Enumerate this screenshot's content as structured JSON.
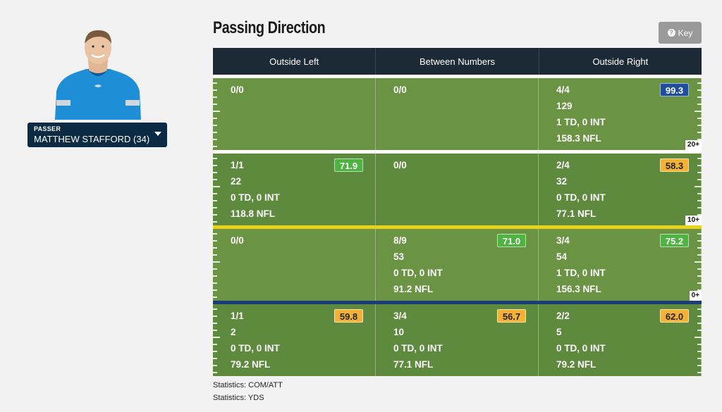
{
  "title": "Passing Direction",
  "key_button": {
    "label": "Key",
    "icon": "question-icon"
  },
  "passer": {
    "label": "Passer",
    "name": "MATTHEW STAFFORD (34)"
  },
  "columns": [
    "Outside Left",
    "Between Numbers",
    "Outside Right"
  ],
  "rows": [
    {
      "yard_label": "20+",
      "cells": [
        {
          "lines": [
            "0/0"
          ],
          "rating": null,
          "rating_color": null
        },
        {
          "lines": [
            "0/0"
          ],
          "rating": null,
          "rating_color": null
        },
        {
          "lines": [
            "4/4",
            "129",
            "1 TD, 0 INT",
            "158.3 NFL"
          ],
          "rating": "99.3",
          "rating_color": "blue"
        }
      ]
    },
    {
      "yard_label": "10+",
      "cells": [
        {
          "lines": [
            "1/1",
            "22",
            "0 TD, 0 INT",
            "118.8 NFL"
          ],
          "rating": "71.9",
          "rating_color": "green"
        },
        {
          "lines": [
            "0/0"
          ],
          "rating": null,
          "rating_color": null
        },
        {
          "lines": [
            "2/4",
            "32",
            "0 TD, 0 INT",
            "77.1 NFL"
          ],
          "rating": "58.3",
          "rating_color": "yellow"
        }
      ]
    },
    {
      "yard_label": "0+",
      "cells": [
        {
          "lines": [
            "0/0"
          ],
          "rating": null,
          "rating_color": null
        },
        {
          "lines": [
            "8/9",
            "53",
            "0 TD, 0 INT",
            "91.2 NFL"
          ],
          "rating": "71.0",
          "rating_color": "green"
        },
        {
          "lines": [
            "3/4",
            "54",
            "1 TD, 0 INT",
            "156.3 NFL"
          ],
          "rating": "75.2",
          "rating_color": "green"
        }
      ]
    },
    {
      "yard_label": "",
      "cells": [
        {
          "lines": [
            "1/1",
            "2",
            "0 TD, 0 INT",
            "79.2 NFL"
          ],
          "rating": "59.8",
          "rating_color": "yellow"
        },
        {
          "lines": [
            "3/4",
            "10",
            "0 TD, 0 INT",
            "77.1 NFL"
          ],
          "rating": "56.7",
          "rating_color": "yellow"
        },
        {
          "lines": [
            "2/2",
            "5",
            "0 TD, 0 INT",
            "79.2 NFL"
          ],
          "rating": "62.0",
          "rating_color": "yellow"
        }
      ]
    }
  ],
  "footnotes": [
    "Statistics: COM/ATT",
    "Statistics: YDS"
  ],
  "colors": {
    "header_bg": "#1c2a36",
    "field_light": "#6a9444",
    "field_dark": "#5e8a3e",
    "badge_blue": "#1f4e9c",
    "badge_green": "#4fb342",
    "badge_yellow": "#f3b233",
    "line_of_scrimmage": "#1b3b7a",
    "first_down_line": "#e8d21d",
    "passer_bg": "#0b2a44"
  }
}
